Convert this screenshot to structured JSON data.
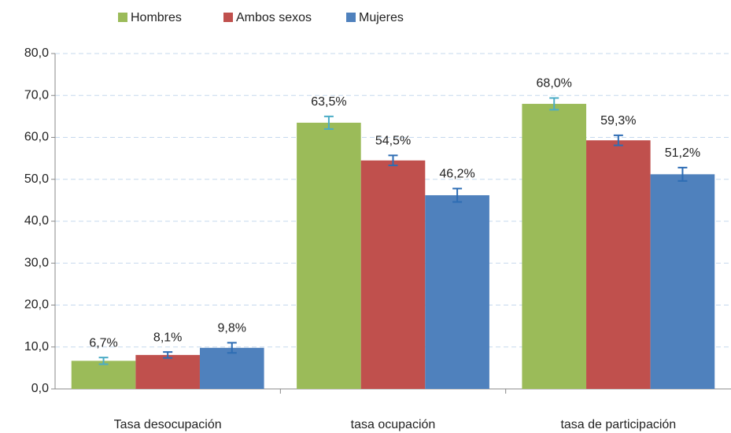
{
  "chart_data": {
    "type": "bar",
    "categories": [
      "Tasa desocupación",
      "tasa ocupación",
      "tasa de participación"
    ],
    "series": [
      {
        "name": "Hombres",
        "color": "#9bbb59",
        "error_color": "#4bacc6",
        "values": [
          6.7,
          63.5,
          68.0
        ],
        "value_labels": [
          "6,7%",
          "63,5%",
          "68,0%"
        ],
        "errors": [
          0.8,
          1.5,
          1.4
        ]
      },
      {
        "name": "Ambos sexos",
        "color": "#c0504d",
        "error_color": "#2e6db4",
        "values": [
          8.1,
          54.5,
          59.3
        ],
        "value_labels": [
          "8,1%",
          "54,5%",
          "59,3%"
        ],
        "errors": [
          0.7,
          1.2,
          1.2
        ]
      },
      {
        "name": "Mujeres",
        "color": "#4f81bd",
        "error_color": "#2e6db4",
        "values": [
          9.8,
          46.2,
          51.2
        ],
        "value_labels": [
          "9,8%",
          "46,2%",
          "51,2%"
        ],
        "errors": [
          1.2,
          1.6,
          1.6
        ]
      }
    ],
    "ylim": [
      0,
      80
    ],
    "yticks": [
      {
        "value": 0,
        "label": "0,0"
      },
      {
        "value": 10,
        "label": "10,0"
      },
      {
        "value": 20,
        "label": "20,0"
      },
      {
        "value": 30,
        "label": "30,0"
      },
      {
        "value": 40,
        "label": "40,0"
      },
      {
        "value": 50,
        "label": "50,0"
      },
      {
        "value": 60,
        "label": "60,0"
      },
      {
        "value": 70,
        "label": "70,0"
      },
      {
        "value": 80,
        "label": "80,0"
      }
    ],
    "grid": true,
    "legend": "top"
  }
}
